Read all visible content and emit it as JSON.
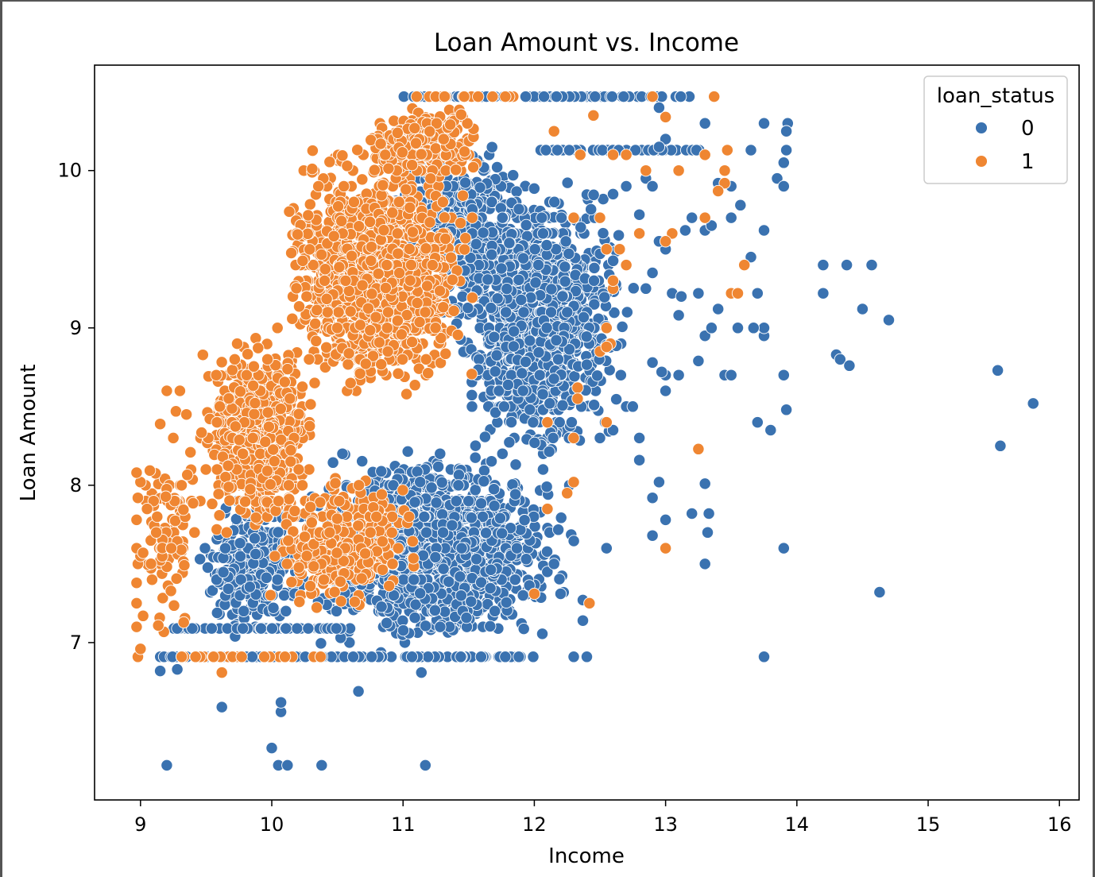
{
  "chart_data": {
    "type": "scatter",
    "title": "Loan Amount vs. Income",
    "xlabel": "Income",
    "ylabel": "Loan Amount",
    "xlim": [
      8.65,
      16.15
    ],
    "ylim": [
      6.0,
      10.67
    ],
    "xticks": [
      9,
      10,
      11,
      12,
      13,
      14,
      15,
      16
    ],
    "yticks": [
      7,
      8,
      9,
      10
    ],
    "grid": false,
    "legend": {
      "title": "loan_status",
      "placement": "top-right",
      "entries": [
        {
          "label": "0",
          "color": "#3a72b0"
        },
        {
          "label": "1",
          "color": "#ef8632"
        }
      ]
    },
    "series": [
      {
        "name": "0",
        "color": "#3a72b0",
        "clusters": [
          {
            "x_range": [
              10.0,
              12.4
            ],
            "y_range": [
              6.9,
              8.3
            ],
            "count": 1500
          },
          {
            "x_range": [
              11.3,
              12.8
            ],
            "y_range": [
              8.0,
              10.1
            ],
            "count": 1100
          },
          {
            "x_range": [
              10.8,
              12.0
            ],
            "y_range": [
              9.0,
              10.3
            ],
            "count": 450
          },
          {
            "x_range": [
              9.4,
              10.3
            ],
            "y_range": [
              7.0,
              8.0
            ],
            "count": 250
          }
        ],
        "lines": [
          {
            "y": 6.91,
            "x_range": [
              9.15,
              12.0
            ],
            "count": 130
          },
          {
            "y": 7.09,
            "x_range": [
              9.2,
              10.6
            ],
            "count": 60
          },
          {
            "y": 10.47,
            "x_range": [
              11.0,
              13.2
            ],
            "count": 70
          },
          {
            "y": 10.13,
            "x_range": [
              12.0,
              13.3
            ],
            "count": 40
          }
        ],
        "points": [
          [
            9.2,
            6.22
          ],
          [
            10.0,
            6.33
          ],
          [
            10.05,
            6.22
          ],
          [
            10.12,
            6.22
          ],
          [
            10.38,
            6.22
          ],
          [
            11.17,
            6.22
          ],
          [
            10.07,
            6.56
          ],
          [
            10.07,
            6.62
          ],
          [
            9.62,
            6.59
          ],
          [
            10.66,
            6.69
          ],
          [
            11.14,
            6.81
          ],
          [
            9.15,
            6.82
          ],
          [
            9.28,
            6.83
          ],
          [
            12.3,
            6.91
          ],
          [
            12.4,
            6.91
          ],
          [
            13.75,
            6.91
          ],
          [
            12.37,
            7.14
          ],
          [
            12.37,
            7.27
          ],
          [
            12.2,
            7.31
          ],
          [
            12.15,
            7.5
          ],
          [
            12.55,
            7.6
          ],
          [
            13.3,
            7.5
          ],
          [
            13.32,
            7.7
          ],
          [
            13.33,
            7.82
          ],
          [
            13.9,
            7.6
          ],
          [
            13.2,
            7.82
          ],
          [
            13.0,
            7.78
          ],
          [
            12.9,
            7.68
          ],
          [
            12.9,
            7.92
          ],
          [
            12.95,
            8.02
          ],
          [
            13.3,
            8.01
          ],
          [
            12.8,
            8.16
          ],
          [
            12.5,
            8.3
          ],
          [
            12.6,
            8.35
          ],
          [
            12.8,
            8.3
          ],
          [
            12.7,
            8.5
          ],
          [
            12.75,
            8.5
          ],
          [
            13.0,
            8.6
          ],
          [
            13.0,
            8.7
          ],
          [
            13.1,
            8.7
          ],
          [
            12.97,
            8.72
          ],
          [
            12.9,
            8.78
          ],
          [
            13.25,
            8.79
          ],
          [
            13.3,
            8.95
          ],
          [
            13.35,
            9.0
          ],
          [
            13.45,
            8.7
          ],
          [
            13.5,
            8.7
          ],
          [
            13.55,
            9.0
          ],
          [
            13.7,
            8.4
          ],
          [
            13.8,
            8.35
          ],
          [
            13.92,
            8.48
          ],
          [
            13.9,
            8.7
          ],
          [
            13.75,
            8.95
          ],
          [
            13.75,
            9.0
          ],
          [
            13.67,
            9.0
          ],
          [
            13.7,
            9.22
          ],
          [
            13.6,
            9.4
          ],
          [
            13.65,
            9.45
          ],
          [
            13.75,
            9.62
          ],
          [
            13.85,
            9.95
          ],
          [
            13.75,
            10.3
          ],
          [
            13.93,
            10.3
          ],
          [
            13.92,
            10.25
          ],
          [
            13.92,
            10.13
          ],
          [
            13.9,
            10.05
          ],
          [
            13.9,
            9.9
          ],
          [
            14.2,
            9.4
          ],
          [
            14.38,
            9.4
          ],
          [
            14.57,
            9.4
          ],
          [
            14.2,
            9.22
          ],
          [
            14.5,
            9.12
          ],
          [
            14.7,
            9.05
          ],
          [
            14.3,
            8.83
          ],
          [
            14.33,
            8.8
          ],
          [
            14.4,
            8.76
          ],
          [
            13.05,
            9.22
          ],
          [
            13.1,
            9.08
          ],
          [
            13.0,
            9.5
          ],
          [
            13.15,
            9.62
          ],
          [
            13.3,
            9.62
          ],
          [
            13.5,
            9.7
          ],
          [
            13.57,
            9.78
          ],
          [
            13.2,
            9.7
          ],
          [
            13.35,
            9.65
          ],
          [
            13.5,
            9.9
          ],
          [
            13.4,
            9.92
          ],
          [
            13.3,
            10.3
          ],
          [
            13.65,
            10.13
          ],
          [
            12.95,
            10.4
          ],
          [
            13.0,
            10.2
          ],
          [
            13.1,
            10.0
          ],
          [
            14.63,
            7.32
          ],
          [
            15.53,
            8.73
          ],
          [
            15.55,
            8.25
          ],
          [
            15.8,
            8.52
          ],
          [
            13.12,
            9.2
          ],
          [
            13.25,
            9.22
          ],
          [
            13.4,
            9.12
          ],
          [
            12.85,
            9.25
          ],
          [
            12.9,
            9.35
          ],
          [
            12.95,
            9.55
          ],
          [
            12.8,
            9.72
          ],
          [
            12.6,
            9.85
          ],
          [
            12.7,
            9.9
          ],
          [
            12.85,
            9.95
          ],
          [
            12.9,
            9.9
          ],
          [
            12.95,
            10.15
          ]
        ]
      },
      {
        "name": "1",
        "color": "#ef8632",
        "clusters": [
          {
            "x_range": [
              10.0,
              11.6
            ],
            "y_range": [
              8.5,
              10.2
            ],
            "count": 1500
          },
          {
            "x_range": [
              9.4,
              10.4
            ],
            "y_range": [
              7.6,
              9.0
            ],
            "count": 650
          },
          {
            "x_range": [
              9.9,
              11.2
            ],
            "y_range": [
              7.1,
              8.2
            ],
            "count": 300
          },
          {
            "x_range": [
              10.6,
              11.7
            ],
            "y_range": [
              9.9,
              10.45
            ],
            "count": 250
          },
          {
            "x_range": [
              8.95,
              9.5
            ],
            "y_range": [
              7.0,
              8.6
            ],
            "count": 90
          }
        ],
        "lines": [
          {
            "y": 10.47,
            "x_range": [
              11.1,
              11.9
            ],
            "count": 20
          },
          {
            "y": 6.91,
            "x_range": [
              9.3,
              10.4
            ],
            "count": 25
          }
        ],
        "points": [
          [
            8.98,
            6.91
          ],
          [
            9.0,
            6.96
          ],
          [
            8.97,
            7.1
          ],
          [
            9.02,
            7.17
          ],
          [
            8.97,
            7.25
          ],
          [
            8.97,
            7.38
          ],
          [
            8.98,
            7.5
          ],
          [
            9.0,
            7.55
          ],
          [
            8.97,
            7.6
          ],
          [
            9.02,
            7.57
          ],
          [
            8.97,
            7.78
          ],
          [
            8.98,
            7.92
          ],
          [
            9.0,
            8.02
          ],
          [
            8.97,
            8.08
          ],
          [
            9.62,
            6.81
          ],
          [
            12.0,
            7.31
          ],
          [
            12.42,
            7.25
          ],
          [
            13.0,
            7.6
          ],
          [
            13.25,
            8.23
          ],
          [
            12.1,
            7.85
          ],
          [
            12.3,
            8.02
          ],
          [
            12.25,
            7.95
          ],
          [
            12.1,
            8.4
          ],
          [
            12.33,
            8.62
          ],
          [
            12.33,
            8.55
          ],
          [
            12.55,
            9.0
          ],
          [
            12.58,
            8.9
          ],
          [
            12.5,
            8.85
          ],
          [
            12.55,
            8.88
          ],
          [
            12.6,
            9.25
          ],
          [
            12.6,
            9.3
          ],
          [
            12.55,
            9.5
          ],
          [
            12.65,
            9.5
          ],
          [
            12.7,
            9.4
          ],
          [
            12.8,
            9.6
          ],
          [
            12.3,
            9.7
          ],
          [
            12.5,
            9.7
          ],
          [
            12.6,
            10.1
          ],
          [
            12.7,
            10.1
          ],
          [
            12.85,
            10.0
          ],
          [
            12.35,
            10.1
          ],
          [
            12.15,
            10.25
          ],
          [
            12.45,
            10.35
          ],
          [
            12.9,
            10.47
          ],
          [
            13.0,
            10.34
          ],
          [
            13.1,
            10.0
          ],
          [
            13.05,
            9.6
          ],
          [
            13.0,
            9.55
          ],
          [
            13.3,
            10.1
          ],
          [
            13.37,
            10.47
          ],
          [
            13.47,
            10.13
          ],
          [
            13.45,
            10.0
          ],
          [
            13.45,
            9.92
          ],
          [
            13.4,
            9.87
          ],
          [
            13.3,
            9.7
          ],
          [
            13.5,
            9.22
          ],
          [
            13.55,
            9.22
          ],
          [
            13.6,
            9.4
          ],
          [
            12.55,
            8.4
          ],
          [
            12.3,
            8.3
          ],
          [
            9.1,
            7.9
          ],
          [
            9.12,
            7.7
          ],
          [
            9.05,
            7.85
          ],
          [
            9.2,
            8.6
          ],
          [
            9.27,
            8.47
          ],
          [
            9.25,
            8.3
          ],
          [
            9.3,
            8.6
          ],
          [
            9.35,
            8.45
          ]
        ]
      }
    ]
  }
}
